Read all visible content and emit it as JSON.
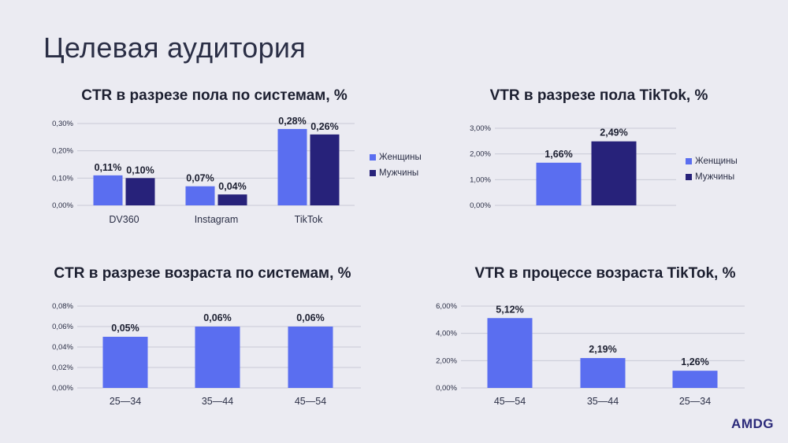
{
  "page_title": "Целевая аудитория",
  "logo": "AMDG",
  "colors": {
    "women": "#5a6ef0",
    "men": "#27227a",
    "single": "#5a6ef0",
    "grid": "#c9cad6"
  },
  "chart_data": [
    {
      "id": "ctr-gender",
      "type": "bar",
      "title": "CTR в разрезе пола по системам, %",
      "categories": [
        "DV360",
        "Instagram",
        "TikTok"
      ],
      "series": [
        {
          "name": "Женщины",
          "values": [
            0.11,
            0.07,
            0.28
          ],
          "labels": [
            "0,11%",
            "0,07%",
            "0,28%"
          ]
        },
        {
          "name": "Мужчины",
          "values": [
            0.1,
            0.04,
            0.26
          ],
          "labels": [
            "0,10%",
            "0,04%",
            "0,26%"
          ]
        }
      ],
      "yticks": [
        "0,00%",
        "0,10%",
        "0,20%",
        "0,30%"
      ],
      "ylim": [
        0,
        0.3
      ],
      "legend_position": "right"
    },
    {
      "id": "vtr-gender",
      "type": "bar",
      "title": "VTR в разрезе пола TikTok, %",
      "categories": [
        "Женщины",
        "Мужчины"
      ],
      "values": [
        1.66,
        2.49
      ],
      "labels": [
        "1,66%",
        "2,49%"
      ],
      "yticks": [
        "0,00%",
        "1,00%",
        "2,00%",
        "3,00%"
      ],
      "ylim": [
        0,
        3.0
      ],
      "legend": [
        "Женщины",
        "Мужчины"
      ],
      "legend_position": "right"
    },
    {
      "id": "ctr-age",
      "type": "bar",
      "title": "CTR в разрезе возраста по системам, %",
      "categories": [
        "25—34",
        "35—44",
        "45—54"
      ],
      "values": [
        0.05,
        0.06,
        0.06
      ],
      "labels": [
        "0,05%",
        "0,06%",
        "0,06%"
      ],
      "yticks": [
        "0,00%",
        "0,02%",
        "0,04%",
        "0,06%",
        "0,08%"
      ],
      "ylim": [
        0,
        0.08
      ]
    },
    {
      "id": "vtr-age",
      "type": "bar",
      "title": "VTR в процессе возраста TikTok, %",
      "categories": [
        "45—54",
        "35—44",
        "25—34"
      ],
      "values": [
        5.12,
        2.19,
        1.26
      ],
      "labels": [
        "5,12%",
        "2,19%",
        "1,26%"
      ],
      "yticks": [
        "0,00%",
        "2,00%",
        "4,00%",
        "6,00%"
      ],
      "ylim": [
        0,
        6.0
      ]
    }
  ]
}
